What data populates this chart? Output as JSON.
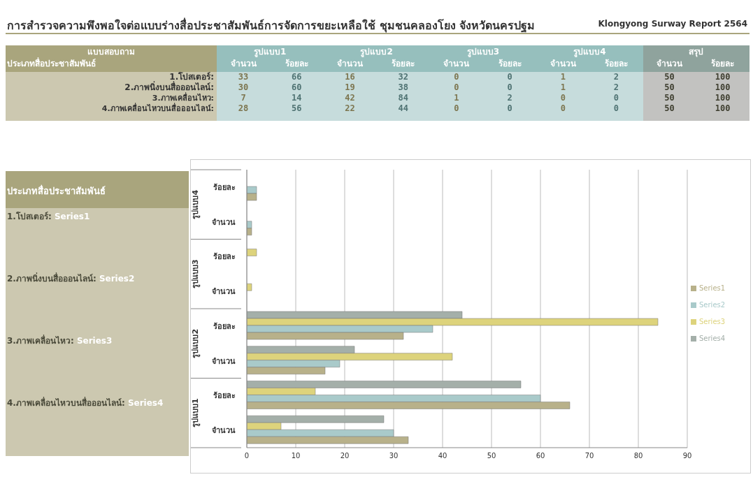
{
  "chart_data": [
    {
      "type": "other",
      "title": "การสำรวจความพึงพอใจต่อแบบร่างสื่อประชาสัมพันธ์การจัดการขยะเหลือใช้ ชุมชนคลองโยง จังหวัดนครปฐม",
      "subtitle": "Klongyong Surway Report 2564",
      "categories": [
        "จำนวน",
        "ร้อยละ",
        "จำนวน",
        "ร้อยละ",
        "จำนวน",
        "ร้อยละ",
        "จำนวน",
        "ร้อยละ",
        "จำนวน",
        "ร้อยละ"
      ],
      "series": [
        {
          "name": "1.โปสเตอร์:",
          "values": [
            33,
            66,
            16,
            32,
            0,
            0,
            1,
            2,
            50,
            100
          ],
          "colors": [
            "#c6dcdc",
            "#c6dcdc",
            "#c6dcdc",
            "#c6dcdc",
            "#c6dcdc",
            "#c6dcdc",
            "#c6dcdc",
            "#c6dcdc",
            "#c2c2c0",
            "#c2c2c0"
          ]
        },
        {
          "name": "2.ภาพนิ่งบนสื่อออนไลน์:",
          "values": [
            30,
            60,
            19,
            38,
            0,
            0,
            1,
            2,
            50,
            100
          ],
          "colors": [
            "#c6dcdc",
            "#c6dcdc",
            "#c6dcdc",
            "#c6dcdc",
            "#c6dcdc",
            "#c6dcdc",
            "#c6dcdc",
            "#c6dcdc",
            "#c2c2c0",
            "#c2c2c0"
          ]
        },
        {
          "name": "3.ภาพเคลื่อนไหว:",
          "values": [
            7,
            14,
            42,
            84,
            1,
            2,
            0,
            0,
            50,
            100
          ],
          "colors": [
            "#c6dcdc",
            "#c6dcdc",
            "#c6dcdc",
            "#c6dcdc",
            "#c6dcdc",
            "#c6dcdc",
            "#c6dcdc",
            "#c6dcdc",
            "#c2c2c0",
            "#c2c2c0"
          ]
        },
        {
          "name": "4.ภาพเคลื่อนไหวบนสื่อออนไลน์:",
          "values": [
            28,
            56,
            22,
            44,
            0,
            0,
            0,
            0,
            50,
            100
          ],
          "colors": [
            "#c6dcdc",
            "#c6dcdc",
            "#c6dcdc",
            "#c6dcdc",
            "#c6dcdc",
            "#c6dcdc",
            "#c6dcdc",
            "#c6dcdc",
            "#c2c2c0",
            "#c2c2c0"
          ]
        }
      ],
      "data_labels": true,
      "annotations": [
        "แบบสอบถาม",
        "ประเภทสื่อประชาสัมพันธ์",
        "รูปแบบ1",
        "รูปแบบ2",
        "รูปแบบ3",
        "รูปแบบ4",
        "สรุป"
      ]
    },
    {
      "type": "bar",
      "orientation": "horizontal",
      "categories": [
        "ร้อยละ",
        "จำนวน",
        "ร้อยละ",
        "จำนวน",
        "ร้อยละ",
        "จำนวน",
        "ร้อยละ",
        "จำนวน"
      ],
      "series": [
        {
          "name": "Series1",
          "color": "#b8b18a",
          "values": [
            2,
            1,
            0,
            0,
            32,
            16,
            66,
            33
          ]
        },
        {
          "name": "Series2",
          "color": "#a9caca",
          "values": [
            2,
            1,
            0,
            0,
            38,
            19,
            60,
            30
          ]
        },
        {
          "name": "Series3",
          "color": "#ddd37c",
          "values": [
            0,
            0,
            2,
            1,
            84,
            42,
            14,
            7
          ]
        },
        {
          "name": "Series4",
          "color": "#a4afa9",
          "values": [
            0,
            0,
            0,
            0,
            44,
            22,
            56,
            28
          ]
        }
      ],
      "xlim": [
        0,
        90
      ],
      "xticks": [
        0,
        10,
        20,
        30,
        40,
        50,
        60,
        70,
        80,
        90
      ],
      "grid": "x",
      "legend": "right",
      "annotations": [
        "รูปแบบ1",
        "รูปแบบ2",
        "รูปแบบ3",
        "รูปแบบ4",
        "ประเภทสื่อประชาสัมพันธ์",
        "1.โปสเตอร์:",
        "2.ภาพนิ่งบนสื่อออนไลน์:",
        "3.ภาพเคลื่อนไหว:",
        "4.ภาพเคลื่อนไหวบนสื่อออนไลน์:"
      ]
    }
  ]
}
